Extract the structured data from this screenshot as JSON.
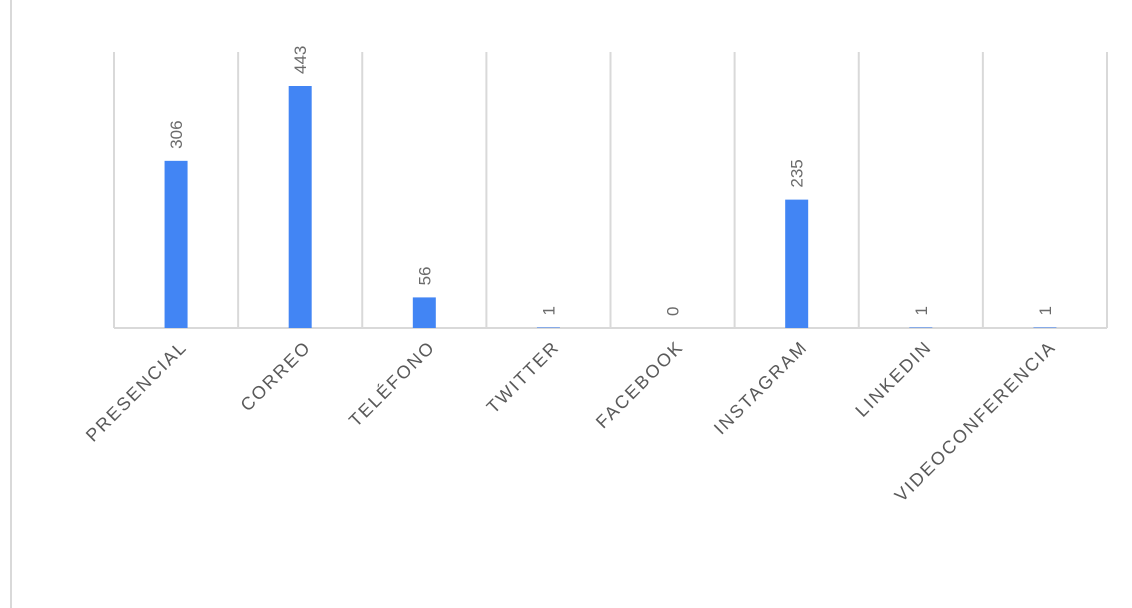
{
  "chart_data": {
    "type": "bar",
    "title": "",
    "xlabel": "",
    "ylabel": "",
    "categories": [
      "PRESENCIAL",
      "CORREO",
      "TELÉFONO",
      "TWITTER",
      "FACEBOOK",
      "INSTAGRAM",
      "LINKEDIN",
      "VIDEOCONFERENCIA"
    ],
    "values": [
      306,
      443,
      56,
      1,
      0,
      235,
      1,
      1
    ],
    "ylim": [
      0,
      443
    ],
    "grid": "vertical category separators",
    "legend": "none",
    "bar_color": "#4285f4",
    "grid_color": "#d9d9d9",
    "label_color": "#595959"
  }
}
